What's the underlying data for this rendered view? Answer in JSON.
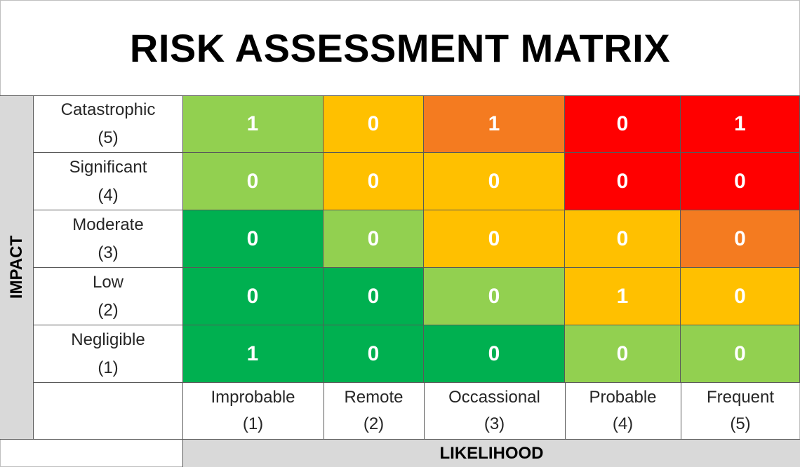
{
  "chart_data": {
    "type": "heatmap",
    "title": "RISK ASSESSMENT MATRIX",
    "ylabel": "IMPACT",
    "xlabel": "LIKELIHOOD",
    "rows": [
      {
        "name": "Catastrophic",
        "score": "(5)"
      },
      {
        "name": "Significant",
        "score": "(4)"
      },
      {
        "name": "Moderate",
        "score": "(3)"
      },
      {
        "name": "Low",
        "score": "(2)"
      },
      {
        "name": "Negligible",
        "score": "(1)"
      }
    ],
    "columns": [
      {
        "name": "Improbable",
        "score": "(1)"
      },
      {
        "name": "Remote",
        "score": "(2)"
      },
      {
        "name": "Occassional",
        "score": "(3)"
      },
      {
        "name": "Probable",
        "score": "(4)"
      },
      {
        "name": "Frequent",
        "score": "(5)"
      }
    ],
    "values": [
      [
        1,
        0,
        1,
        0,
        1
      ],
      [
        0,
        0,
        0,
        0,
        0
      ],
      [
        0,
        0,
        0,
        0,
        0
      ],
      [
        0,
        0,
        0,
        1,
        0
      ],
      [
        1,
        0,
        0,
        0,
        0
      ]
    ],
    "cell_colors": [
      [
        "#92d050",
        "#ffc000",
        "#f47b20",
        "#ff0000",
        "#ff0000"
      ],
      [
        "#92d050",
        "#ffc000",
        "#ffc000",
        "#ff0000",
        "#ff0000"
      ],
      [
        "#00b050",
        "#92d050",
        "#ffc000",
        "#ffc000",
        "#f47b20"
      ],
      [
        "#00b050",
        "#00b050",
        "#92d050",
        "#ffc000",
        "#ffc000"
      ],
      [
        "#00b050",
        "#00b050",
        "#00b050",
        "#92d050",
        "#92d050"
      ]
    ]
  }
}
